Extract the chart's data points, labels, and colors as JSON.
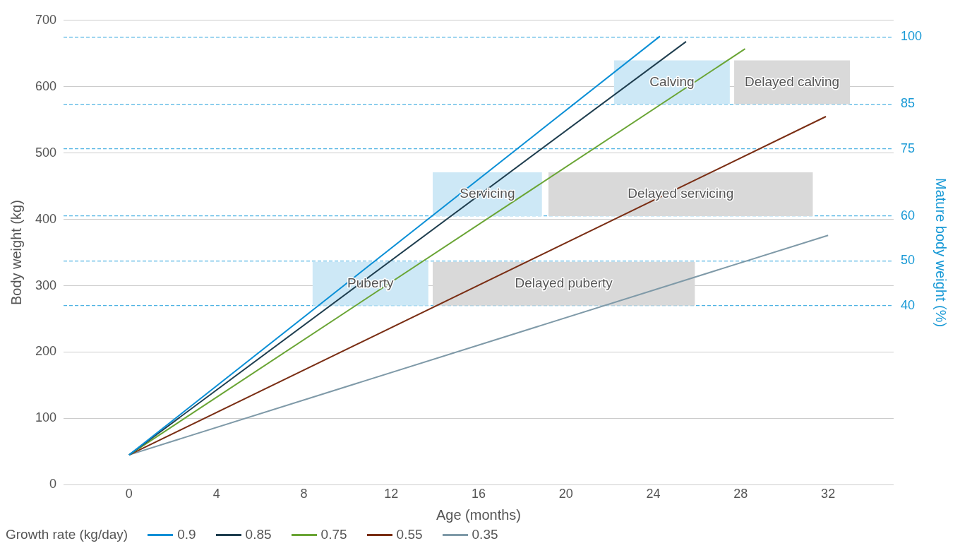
{
  "chart_data": {
    "type": "line",
    "xlabel": "Age (months)",
    "ylabel": "Body weight (kg)",
    "y2label": "Mature body weight (%)",
    "legend_title": "Growth rate (kg/day)",
    "legend": "bottom left",
    "grid": "y",
    "marker": "none",
    "line_style": "solid",
    "xlim": [
      -3,
      35
    ],
    "xticks": [
      0,
      4,
      8,
      12,
      16,
      20,
      24,
      28,
      32
    ],
    "ylim": [
      0,
      700
    ],
    "yticks": [
      0,
      100,
      200,
      300,
      400,
      500,
      600,
      700
    ],
    "y2lim": [
      0,
      103.7
    ],
    "y2ticks": [
      40,
      50,
      60,
      75,
      85,
      100
    ],
    "series": [
      {
        "name": "0.9",
        "color": "#0a8fd6",
        "x": [
          0,
          24.3
        ],
        "values": [
          45,
          676
        ]
      },
      {
        "name": "0.85",
        "color": "#1f3e4f",
        "x": [
          0,
          25.5
        ],
        "values": [
          45,
          668
        ]
      },
      {
        "name": "0.75",
        "color": "#6aa535",
        "x": [
          0,
          28.2
        ],
        "values": [
          45,
          657
        ]
      },
      {
        "name": "0.55",
        "color": "#7a2e14",
        "x": [
          0,
          31.9
        ],
        "values": [
          45,
          555
        ]
      },
      {
        "name": "0.35",
        "color": "#7f9aa8",
        "x": [
          0,
          32
        ],
        "values": [
          45,
          376
        ]
      }
    ],
    "bands": [
      {
        "axis": "x",
        "from": 8.4,
        "to": 13.7,
        "label": "Puberty",
        "color": "#cde8f6"
      },
      {
        "axis": "x",
        "from": 13.9,
        "to": 25.9,
        "label": "Delayed puberty",
        "color": "#d9d9d9"
      },
      {
        "axis": "x",
        "from": 13.9,
        "to": 18.9,
        "label": "Servicing",
        "color": "#cde8f6"
      },
      {
        "axis": "x",
        "from": 19.2,
        "to": 31.3,
        "label": "Delayed servicing",
        "color": "#d9d9d9"
      },
      {
        "axis": "x",
        "from": 22.2,
        "to": 27.5,
        "label": "Calving",
        "color": "#cde8f6"
      },
      {
        "axis": "x",
        "from": 27.7,
        "to": 33.0,
        "label": "Delayed calving",
        "color": "#d9d9d9"
      }
    ]
  }
}
